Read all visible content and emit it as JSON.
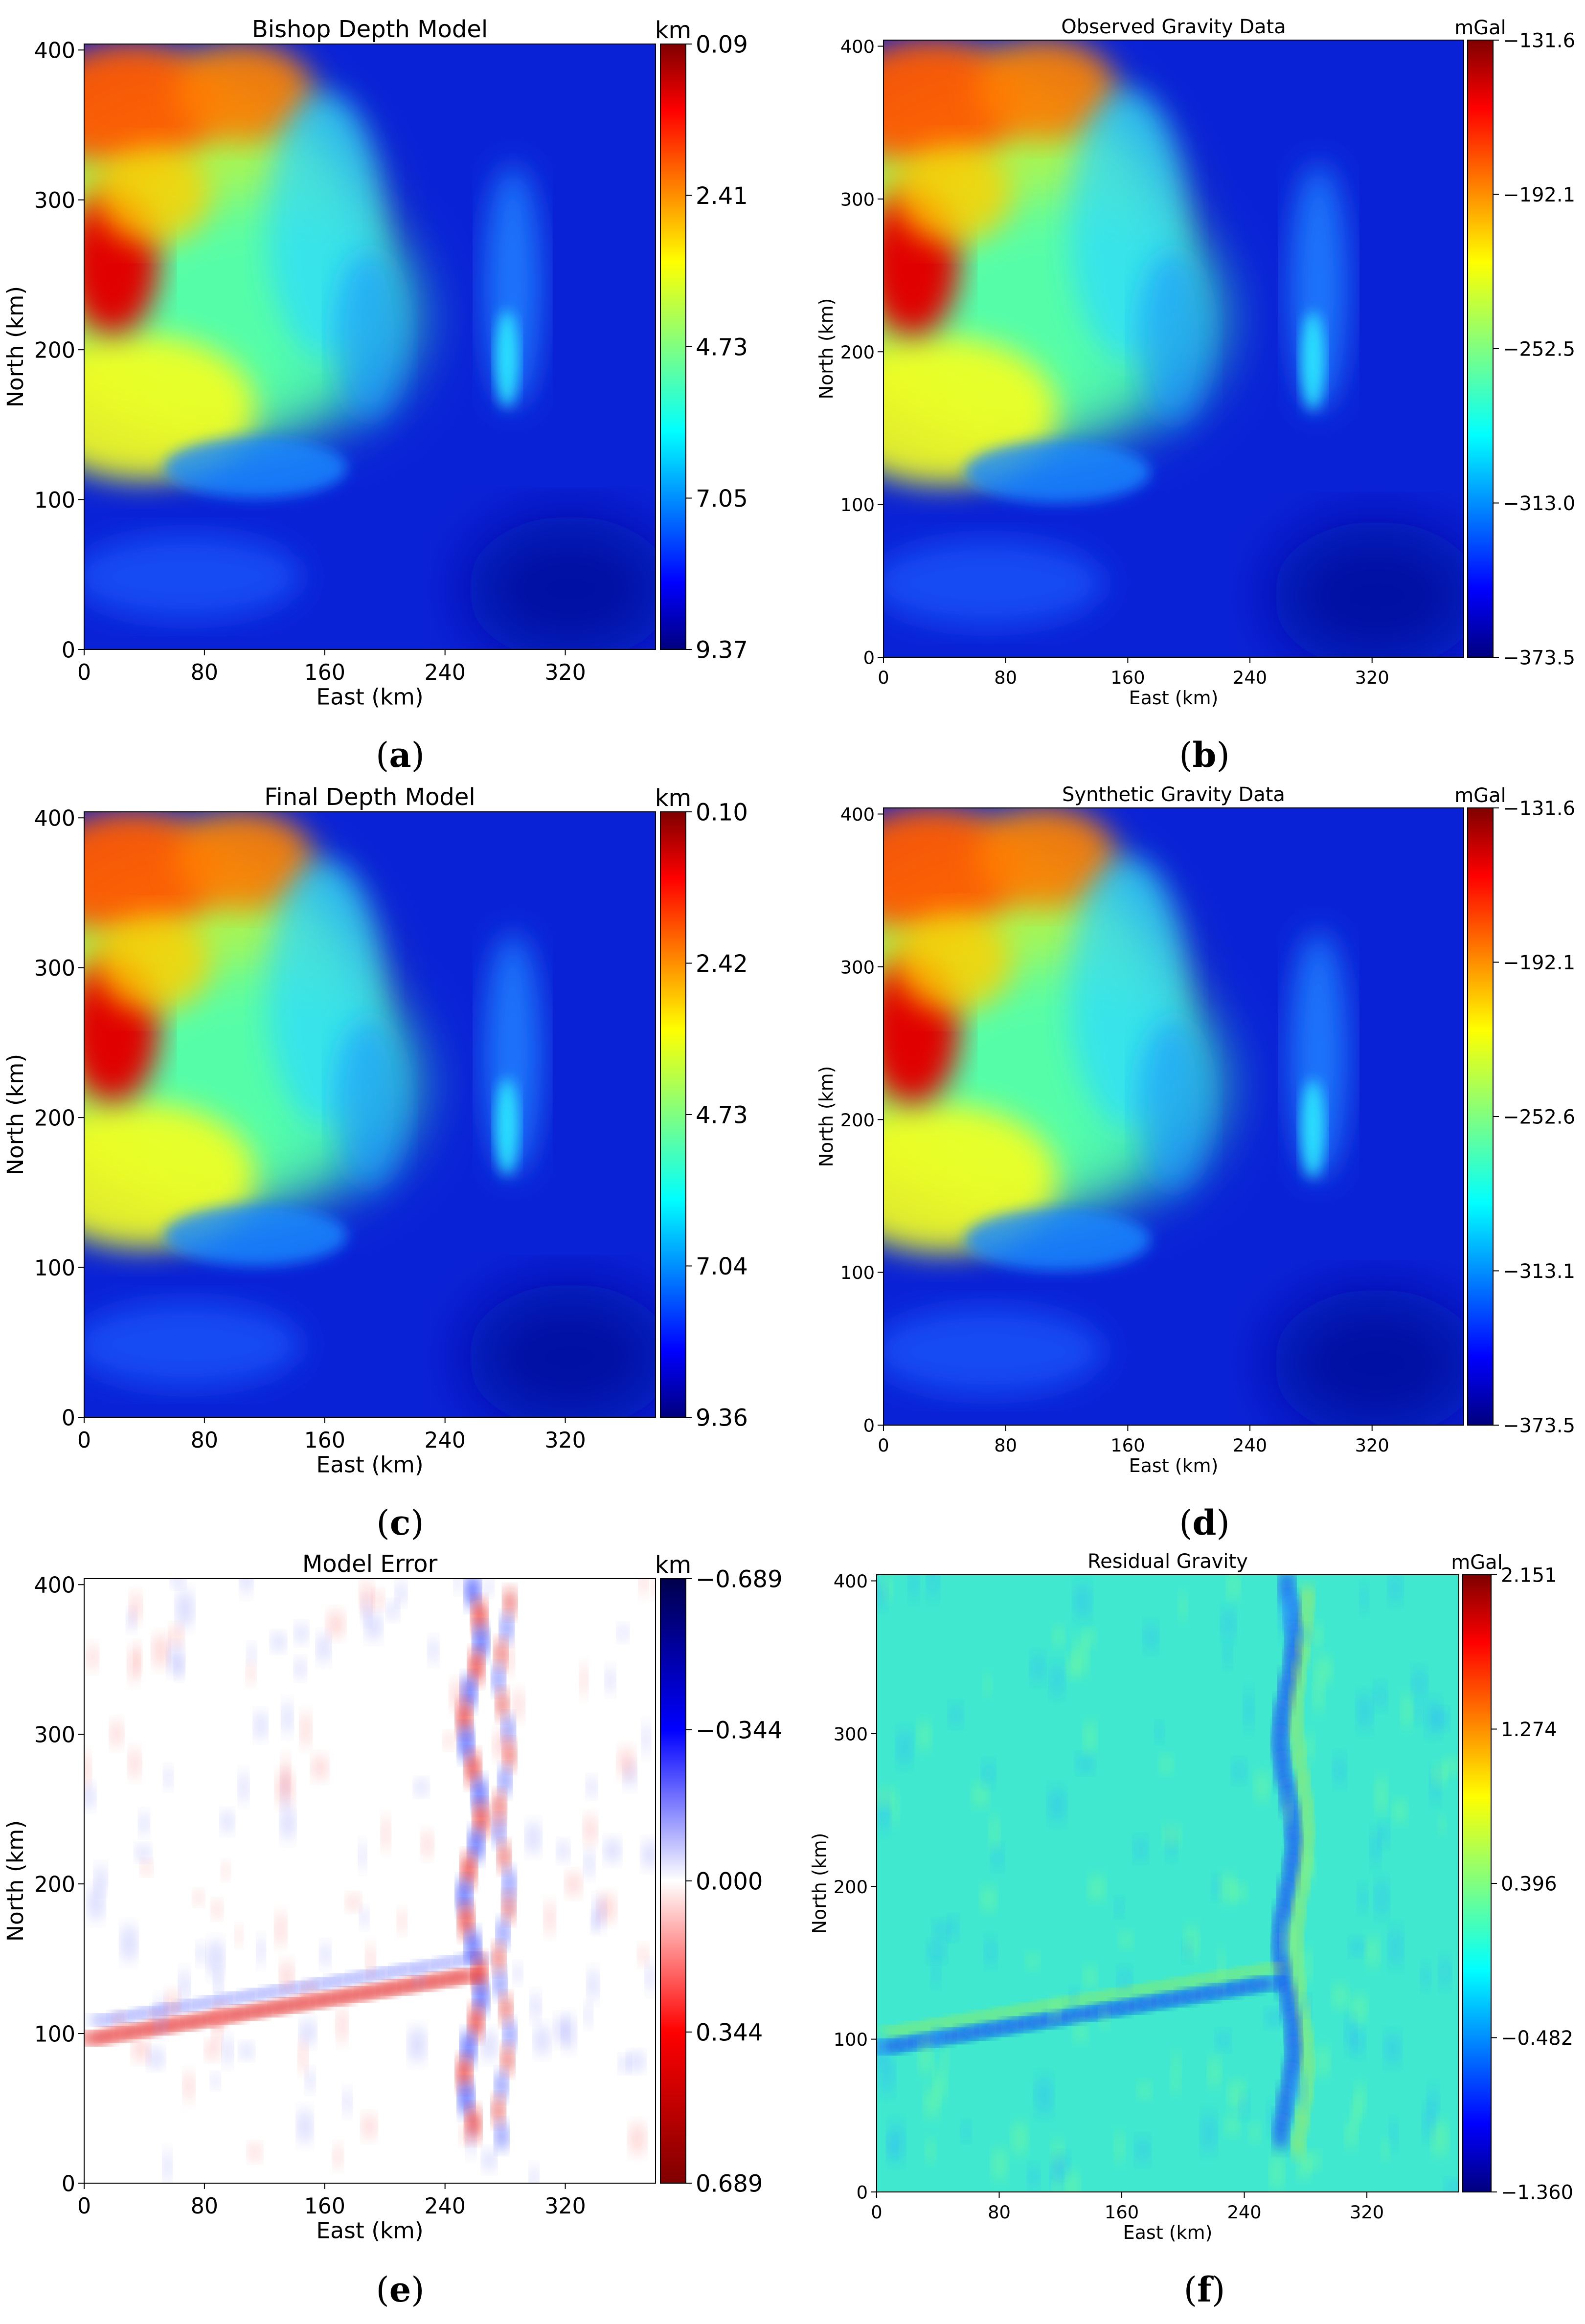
{
  "panels": [
    {
      "id": "a",
      "caption_letter": "a",
      "title": "Bishop Depth Model",
      "unit": "km",
      "colormap": "jet",
      "field": "depth",
      "cbar_ticks": [
        "0.09",
        "2.41",
        "4.73",
        "7.05",
        "9.37"
      ],
      "xlabel": "East (km)",
      "ylabel": "North (km)",
      "xticks": [
        "0",
        "80",
        "160",
        "240",
        "320"
      ],
      "yticks": [
        "0",
        "100",
        "200",
        "300",
        "400"
      ]
    },
    {
      "id": "b",
      "caption_letter": "b",
      "title": "Observed Gravity Data",
      "unit": "mGal",
      "colormap": "jet",
      "field": "gravity",
      "cbar_ticks": [
        "−131.6",
        "−192.1",
        "−252.5",
        "−313.0",
        "−373.5"
      ],
      "xlabel": "East (km)",
      "ylabel": "North (km)",
      "xticks": [
        "0",
        "80",
        "160",
        "240",
        "320"
      ],
      "yticks": [
        "0",
        "100",
        "200",
        "300",
        "400"
      ]
    },
    {
      "id": "c",
      "caption_letter": "c",
      "title": "Final Depth Model",
      "unit": "km",
      "colormap": "jet",
      "field": "depth",
      "cbar_ticks": [
        "0.10",
        "2.42",
        "4.73",
        "7.04",
        "9.36"
      ],
      "xlabel": "East (km)",
      "ylabel": "North (km)",
      "xticks": [
        "0",
        "80",
        "160",
        "240",
        "320"
      ],
      "yticks": [
        "0",
        "100",
        "200",
        "300",
        "400"
      ]
    },
    {
      "id": "d",
      "caption_letter": "d",
      "title": "Synthetic Gravity Data",
      "unit": "mGal",
      "colormap": "jet",
      "field": "gravity",
      "cbar_ticks": [
        "−131.6",
        "−192.1",
        "−252.6",
        "−313.1",
        "−373.5"
      ],
      "xlabel": "East (km)",
      "ylabel": "North (km)",
      "xticks": [
        "0",
        "80",
        "160",
        "240",
        "320"
      ],
      "yticks": [
        "0",
        "100",
        "200",
        "300",
        "400"
      ]
    },
    {
      "id": "e",
      "caption_letter": "e",
      "title": "Model Error",
      "unit": "km",
      "colormap": "seismic_r",
      "field": "error",
      "cbar_ticks": [
        "−0.689",
        "−0.344",
        "0.000",
        "0.344",
        "0.689"
      ],
      "xlabel": "East (km)",
      "ylabel": "North (km)",
      "xticks": [
        "0",
        "80",
        "160",
        "240",
        "320"
      ],
      "yticks": [
        "0",
        "100",
        "200",
        "300",
        "400"
      ]
    },
    {
      "id": "f",
      "caption_letter": "f",
      "title": "Residual Gravity",
      "unit": "mGal",
      "colormap": "jet",
      "field": "residual",
      "cbar_ticks": [
        "2.151",
        "1.274",
        "0.396",
        "−0.482",
        "−1.360"
      ],
      "xlabel": "East (km)",
      "ylabel": "North (km)",
      "xticks": [
        "0",
        "80",
        "160",
        "240",
        "320"
      ],
      "yticks": [
        "0",
        "100",
        "200",
        "300",
        "400"
      ]
    }
  ],
  "chart_data": [
    {
      "type": "heatmap",
      "title": "Bishop Depth Model",
      "xlabel": "East (km)",
      "ylabel": "North (km)",
      "xlim": [
        0,
        380
      ],
      "ylim": [
        0,
        400
      ],
      "colorbar": {
        "label": "km",
        "range": [
          0.09,
          9.37
        ],
        "ticks": [
          0.09,
          2.41,
          4.73,
          7.05,
          9.37
        ]
      }
    },
    {
      "type": "heatmap",
      "title": "Observed Gravity Data",
      "xlabel": "East (km)",
      "ylabel": "North (km)",
      "xlim": [
        0,
        380
      ],
      "ylim": [
        0,
        400
      ],
      "colorbar": {
        "label": "mGal",
        "range": [
          -373.5,
          -131.6
        ],
        "ticks": [
          -131.6,
          -192.1,
          -252.5,
          -313.0,
          -373.5
        ]
      }
    },
    {
      "type": "heatmap",
      "title": "Final Depth Model",
      "xlabel": "East (km)",
      "ylabel": "North (km)",
      "xlim": [
        0,
        380
      ],
      "ylim": [
        0,
        400
      ],
      "colorbar": {
        "label": "km",
        "range": [
          0.1,
          9.36
        ],
        "ticks": [
          0.1,
          2.42,
          4.73,
          7.04,
          9.36
        ]
      }
    },
    {
      "type": "heatmap",
      "title": "Synthetic Gravity Data",
      "xlabel": "East (km)",
      "ylabel": "North (km)",
      "xlim": [
        0,
        380
      ],
      "ylim": [
        0,
        400
      ],
      "colorbar": {
        "label": "mGal",
        "range": [
          -373.5,
          -131.6
        ],
        "ticks": [
          -131.6,
          -192.1,
          -252.6,
          -313.1,
          -373.5
        ]
      }
    },
    {
      "type": "heatmap",
      "title": "Model Error",
      "xlabel": "East (km)",
      "ylabel": "North (km)",
      "xlim": [
        0,
        380
      ],
      "ylim": [
        0,
        400
      ],
      "colorbar": {
        "label": "km",
        "range": [
          -0.689,
          0.689
        ],
        "ticks": [
          -0.689,
          -0.344,
          0.0,
          0.344,
          0.689
        ]
      }
    },
    {
      "type": "heatmap",
      "title": "Residual Gravity",
      "xlabel": "East (km)",
      "ylabel": "North (km)",
      "xlim": [
        0,
        380
      ],
      "ylim": [
        0,
        400
      ],
      "colorbar": {
        "label": "mGal",
        "range": [
          -1.36,
          2.151
        ],
        "ticks": [
          2.151,
          1.274,
          0.396,
          -0.482,
          -1.36
        ]
      }
    }
  ]
}
